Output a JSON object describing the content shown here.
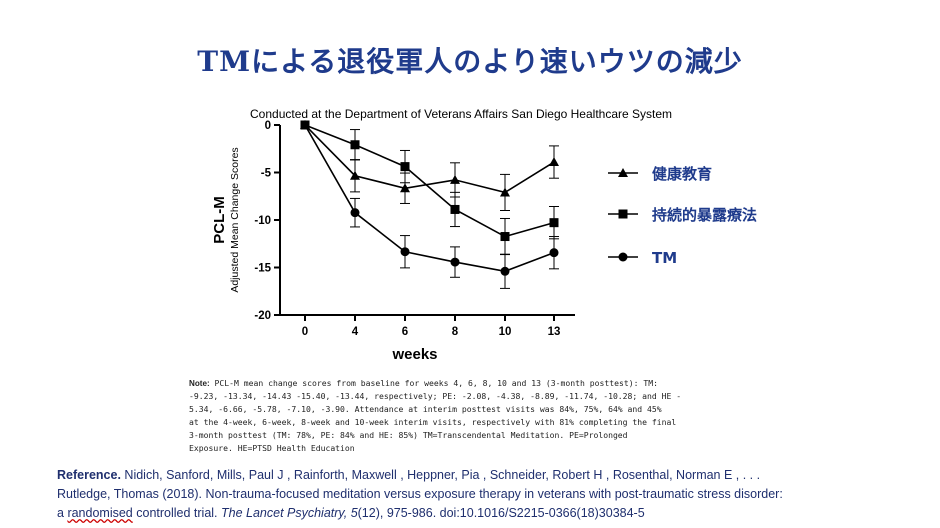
{
  "slide": {
    "title": "TMによる退役軍人のより速いウツの減少",
    "chart_subtitle": "Conducted at the Department of Veterans Affairs San Diego Healthcare System"
  },
  "chart_data": {
    "type": "line",
    "ylabel_main": "PCL-M",
    "ylabel_sub": "Adjusted Mean Change Scores",
    "xlabel": "weeks",
    "x": [
      "0",
      "4",
      "6",
      "8",
      "10",
      "13"
    ],
    "yticks": [
      "0",
      "-5",
      "-10",
      "-15",
      "-20"
    ],
    "ylim": [
      -20,
      0
    ],
    "series": [
      {
        "name": "健康教育",
        "marker": "triangle",
        "values": [
          0,
          -5.34,
          -6.66,
          -5.78,
          -7.1,
          -3.9
        ],
        "err": [
          0,
          1.7,
          1.6,
          1.8,
          1.9,
          1.7
        ]
      },
      {
        "name": "持続的暴露療法",
        "marker": "square",
        "values": [
          0,
          -2.08,
          -4.38,
          -8.89,
          -11.74,
          -10.28
        ],
        "err": [
          0,
          1.6,
          1.7,
          1.8,
          1.9,
          1.7
        ]
      },
      {
        "name": "TM",
        "marker": "circle",
        "values": [
          0,
          -9.23,
          -13.34,
          -14.43,
          -15.4,
          -13.44
        ],
        "err": [
          0,
          1.5,
          1.7,
          1.6,
          1.8,
          1.7
        ]
      }
    ],
    "legend_position": "right"
  },
  "note": {
    "label": "Note:",
    "text": " PCL-M mean change scores from baseline for weeks 4, 6, 8, 10 and 13 (3-month posttest): TM:\n-9.23, -13.34, -14.43 -15.40, -13.44, respectively; PE: -2.08, -4.38, -8.89, -11.74, -10.28; and HE -\n5.34, -6.66, -5.78, -7.10, -3.90. Attendance at interim posttest visits was 84%, 75%, 64% and 45%\nat the 4-week, 6-week, 8-week and 10-week interim visits, respectively with 81% completing the final\n3-month posttest (TM: 78%, PE: 84% and HE: 85%)  TM=Transcendental Meditation. PE=Prolonged\nExposure. HE=PTSD Health Education"
  },
  "reference": {
    "label": "Reference.",
    "authors": " Nidich, Sanford, Mills, Paul J , Rainforth, Maxwell , Heppner, Pia , Schneider, Robert H , Rosenthal, Norman E , . . .",
    "line2": "Rutledge, Thomas (2018). Non-trauma-focused meditation versus exposure therapy in veterans with post-traumatic stress disorder:",
    "line3_pre": "a ",
    "line3_ul": "randomised",
    "line3_mid": " controlled trial. ",
    "journal": "The Lancet Psychiatry, 5",
    "line3_post": "(12), 975-986. doi:10.1016/S2215-0366(18)30384-5"
  }
}
